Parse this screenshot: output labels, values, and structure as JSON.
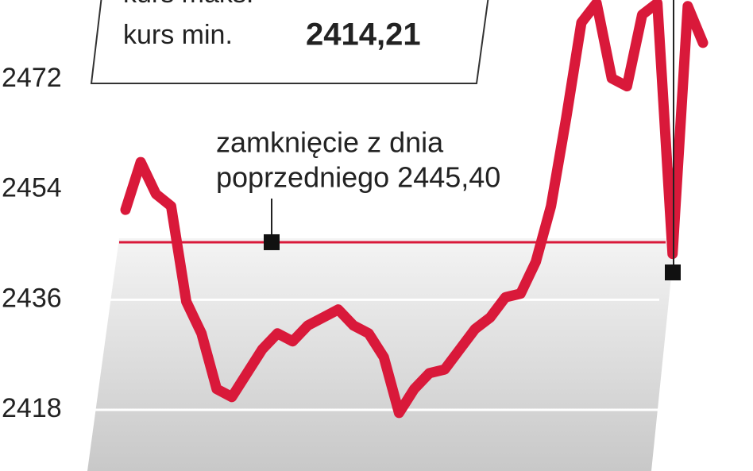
{
  "chart_data": {
    "type": "line",
    "summary": [
      {
        "label": "kurs maks."
      },
      {
        "label": "kurs min.",
        "value_label": "2414,21"
      }
    ],
    "reference": {
      "value": 2445.4,
      "label": [
        "zamknięcie z dnia",
        "poprzedniego 2445,40"
      ]
    },
    "values": [
      2450.7,
      2458.5,
      2453.3,
      2451.3,
      2435.7,
      2430.5,
      2421.4,
      2420.1,
      2424.0,
      2427.9,
      2430.5,
      2429.2,
      2431.8,
      2433.1,
      2434.4,
      2431.8,
      2430.5,
      2426.6,
      2417.5,
      2421.4,
      2424.0,
      2424.6,
      2427.9,
      2431.2,
      2433.1,
      2436.4,
      2437.0,
      2442.2,
      2451.3,
      2465.7,
      2481.3,
      2484.5,
      2472.2,
      2470.9,
      2482.6,
      2484.5,
      2443.5,
      2484.0,
      2478.0
    ],
    "color": "#d9193a",
    "ylim": [
      2408,
      2485
    ],
    "yticks": [
      2418,
      2436,
      2454,
      2472
    ],
    "grid": true
  }
}
